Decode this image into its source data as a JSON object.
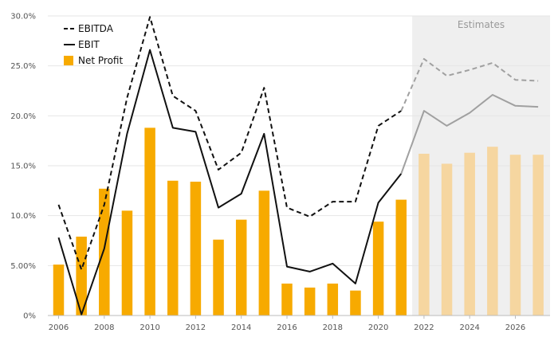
{
  "chart_data": {
    "type": "bar+line",
    "title": "",
    "xlabel": "",
    "ylabel": "",
    "ylim": [
      0,
      30
    ],
    "y_ticks": [
      "0%",
      "5.00%",
      "10.0%",
      "15.0%",
      "20.0%",
      "25.0%",
      "30.0%"
    ],
    "y_tick_values": [
      0,
      5,
      10,
      15,
      20,
      25,
      30
    ],
    "x_ticks": [
      "2006",
      "2008",
      "2010",
      "2012",
      "2014",
      "2016",
      "2018",
      "2020",
      "2022",
      "2024",
      "2026"
    ],
    "years": [
      2006,
      2007,
      2008,
      2009,
      2010,
      2011,
      2012,
      2013,
      2014,
      2015,
      2016,
      2017,
      2018,
      2019,
      2020,
      2021,
      2022,
      2023,
      2024,
      2025,
      2026,
      2027
    ],
    "estimates_start_year": 2022,
    "estimates_label": "Estimates",
    "legend": {
      "position": "top-left",
      "ebitda_label": "EBITDA",
      "ebit_label": "EBIT",
      "net_profit_label": "Net Profit"
    },
    "series": [
      {
        "name": "EBITDA",
        "kind": "line",
        "style": "dashed",
        "color": "#111111",
        "estimate_color": "#a0a0a0",
        "values": [
          11.1,
          4.6,
          11.1,
          21.8,
          29.9,
          22.0,
          20.5,
          14.6,
          16.3,
          22.8,
          10.8,
          9.9,
          11.4,
          11.4,
          19.0,
          20.5,
          25.7,
          24.0,
          24.6,
          25.3,
          23.6,
          23.5
        ]
      },
      {
        "name": "EBIT",
        "kind": "line",
        "style": "solid",
        "color": "#111111",
        "estimate_color": "#a0a0a0",
        "values": [
          7.8,
          0.1,
          6.7,
          18.2,
          26.6,
          18.8,
          18.4,
          10.8,
          12.2,
          18.2,
          4.9,
          4.4,
          5.2,
          3.2,
          11.3,
          14.2,
          20.5,
          19.0,
          20.3,
          22.1,
          21.0,
          20.9
        ]
      },
      {
        "name": "Net Profit",
        "kind": "bar",
        "color": "#f7aa00",
        "estimate_color": "#f6d6a0",
        "values": [
          5.1,
          7.9,
          12.7,
          10.5,
          18.8,
          13.5,
          13.4,
          7.6,
          9.6,
          12.5,
          3.2,
          2.8,
          3.2,
          2.5,
          9.4,
          11.6,
          16.2,
          15.2,
          16.3,
          16.9,
          16.1,
          16.1
        ]
      }
    ]
  },
  "colors": {
    "estimates_shade": "#efefef",
    "grid": "#e6e6e6",
    "axis": "#bbbbbb"
  }
}
